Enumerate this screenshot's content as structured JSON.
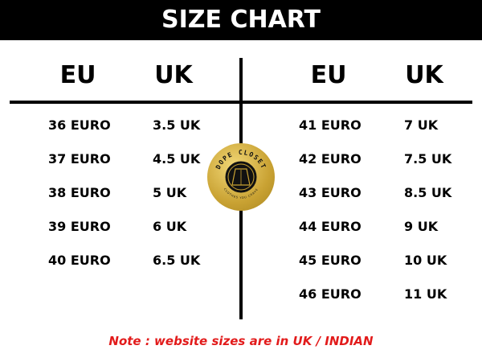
{
  "title": "SIZE CHART",
  "left": {
    "headers": [
      "EU",
      "UK"
    ],
    "rows": [
      [
        "36 EURO",
        "3.5 UK"
      ],
      [
        "37 EURO",
        "4.5 UK"
      ],
      [
        "38 EURO",
        "5 UK"
      ],
      [
        "39 EURO",
        "6 UK"
      ],
      [
        "40 EURO",
        "6.5 UK"
      ]
    ]
  },
  "right": {
    "headers": [
      "EU",
      "UK"
    ],
    "rows": [
      [
        "41 EURO",
        "7 UK"
      ],
      [
        "42 EURO",
        "7.5 UK"
      ],
      [
        "43 EURO",
        "8.5 UK"
      ],
      [
        "44 EURO",
        "9 UK"
      ],
      [
        "45 EURO",
        "10 UK"
      ],
      [
        "46 EURO",
        "11 UK"
      ]
    ]
  },
  "logo": {
    "name": "DOPE CLOSET",
    "tagline": "CLOTHES YOU CRAVE"
  },
  "note": "Note : website sizes are in UK / INDIAN"
}
